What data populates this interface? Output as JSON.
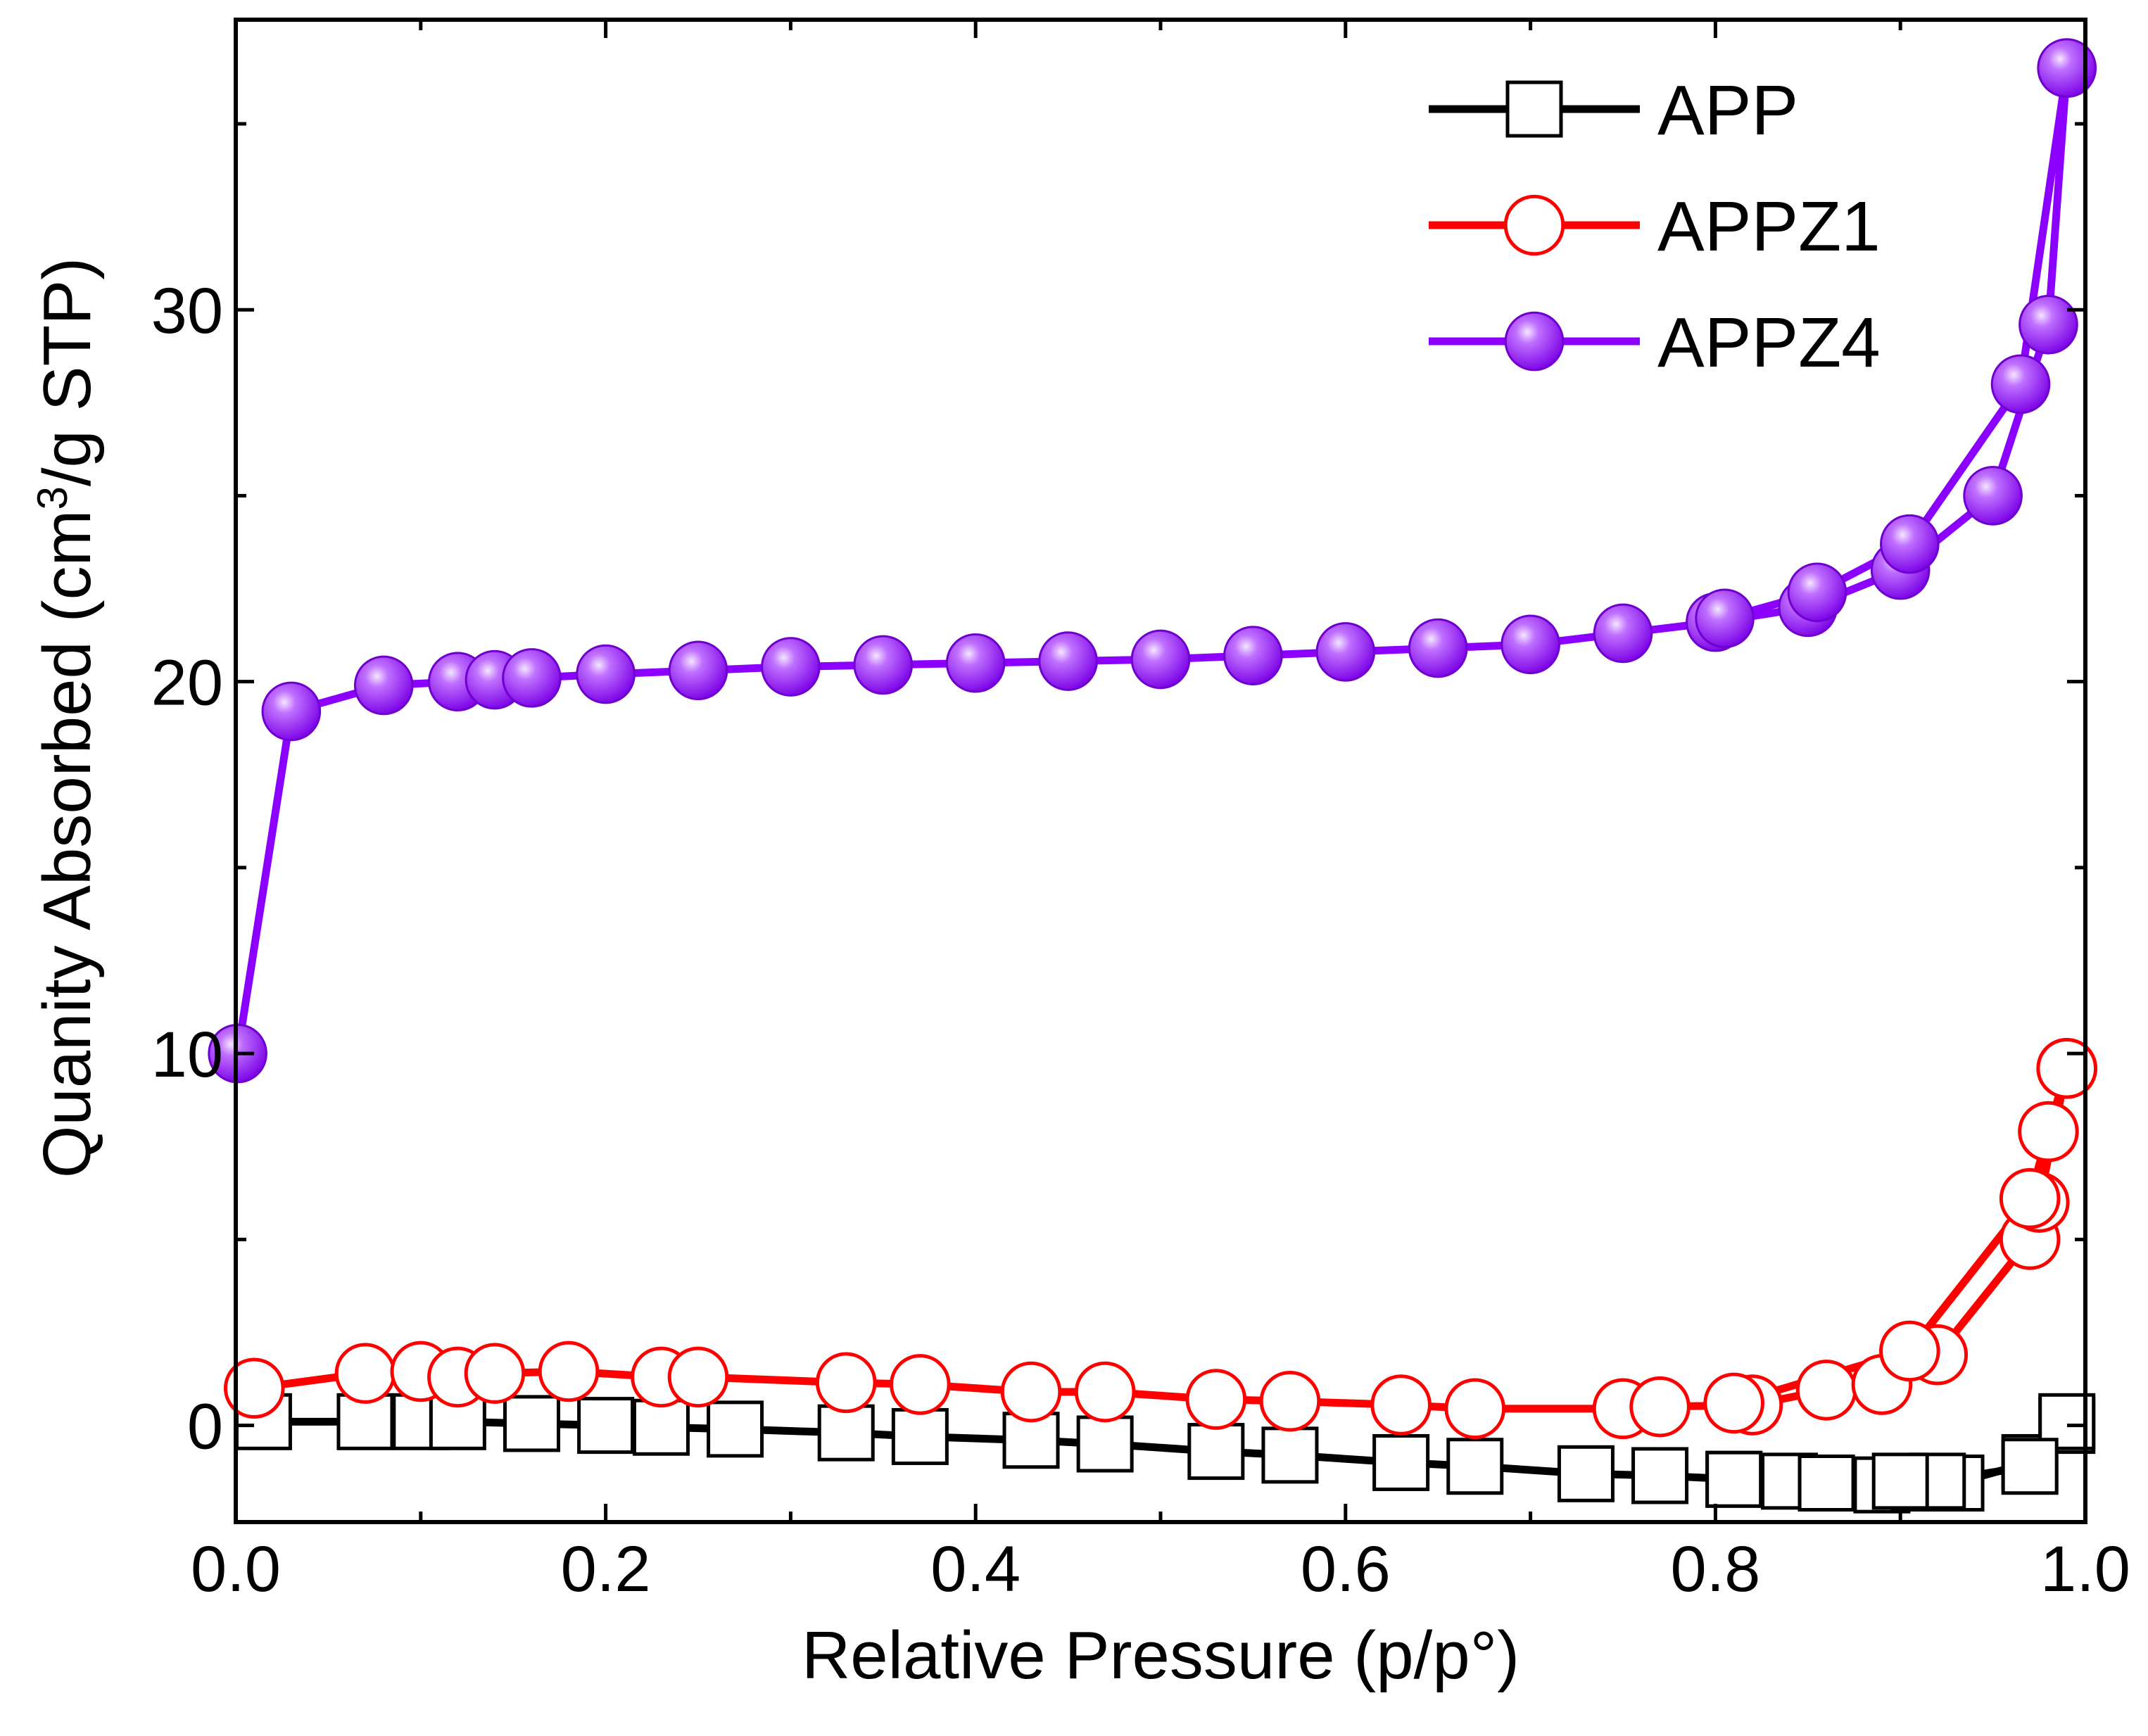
{
  "chart_data": {
    "type": "line",
    "title": "",
    "xlabel": "Relative Pressure (p/p°)",
    "ylabel_prefix": "Quanity Absorbed (cm",
    "ylabel_sup": "3",
    "ylabel_suffix": "/g STP)",
    "xlim": [
      0.0,
      1.0
    ],
    "ylim": [
      -2.6,
      37.8
    ],
    "x_ticks": [
      0.0,
      0.2,
      0.4,
      0.6,
      0.8,
      1.0
    ],
    "x_tick_labels": [
      "0.0",
      "0.2",
      "0.4",
      "0.6",
      "0.8",
      "1.0"
    ],
    "y_ticks": [
      0,
      10,
      20,
      30
    ],
    "y_tick_labels": [
      "0",
      "10",
      "20",
      "30"
    ],
    "y_minor_ticks": [
      -5,
      5,
      15,
      25,
      35
    ],
    "legend_position": "top-right",
    "series": [
      {
        "name": "APP",
        "color": "#000000",
        "marker": "open-square",
        "adsorption": {
          "x": [
            0.015,
            0.07,
            0.1,
            0.12,
            0.16,
            0.2,
            0.23,
            0.27,
            0.33,
            0.37,
            0.43,
            0.47,
            0.53,
            0.57,
            0.63,
            0.67,
            0.73,
            0.77,
            0.81,
            0.84,
            0.86,
            0.89,
            0.91,
            0.93,
            0.97,
            0.99
          ],
          "y": [
            0.1,
            0.1,
            0.1,
            0.1,
            0.05,
            0.0,
            -0.05,
            -0.1,
            -0.2,
            -0.3,
            -0.4,
            -0.5,
            -0.7,
            -0.8,
            -1.0,
            -1.1,
            -1.3,
            -1.35,
            -1.45,
            -1.5,
            -1.55,
            -1.6,
            -1.55,
            -1.55,
            -1.0,
            0.0
          ]
        },
        "desorption": {
          "x": [
            0.99,
            0.97,
            0.92,
            0.9,
            0.86,
            0.81
          ],
          "y": [
            0.1,
            -1.1,
            -1.5,
            -1.5,
            -1.55,
            -1.45
          ]
        }
      },
      {
        "name": "APPZ1",
        "color": "#ff0000",
        "marker": "open-circle",
        "adsorption": {
          "x": [
            0.01,
            0.07,
            0.1,
            0.12,
            0.14,
            0.18,
            0.23,
            0.25,
            0.33,
            0.37,
            0.43,
            0.47,
            0.53,
            0.57,
            0.63,
            0.67,
            0.75,
            0.77,
            0.82,
            0.86,
            0.89,
            0.92,
            0.97,
            0.975,
            0.99
          ],
          "y": [
            1.0,
            1.4,
            1.45,
            1.3,
            1.4,
            1.45,
            1.3,
            1.3,
            1.15,
            1.1,
            0.9,
            0.9,
            0.7,
            0.65,
            0.55,
            0.45,
            0.45,
            0.5,
            0.55,
            0.95,
            1.1,
            1.9,
            5.0,
            6.0,
            9.6
          ]
        },
        "desorption": {
          "x": [
            0.99,
            0.98,
            0.97,
            0.905,
            0.81
          ],
          "y": [
            9.6,
            7.9,
            6.1,
            2.0,
            0.6
          ]
        }
      },
      {
        "name": "APPZ4",
        "color": "#8b00ff",
        "marker": "filled-sphere",
        "adsorption": {
          "x": [
            0.001,
            0.03,
            0.08,
            0.12,
            0.14,
            0.16,
            0.2,
            0.25,
            0.3,
            0.35,
            0.4,
            0.45,
            0.5,
            0.55,
            0.6,
            0.65,
            0.7,
            0.75,
            0.8,
            0.85,
            0.9,
            0.95,
            0.98,
            0.99
          ],
          "y": [
            10.0,
            19.2,
            19.9,
            20.0,
            20.05,
            20.1,
            20.2,
            20.3,
            20.4,
            20.45,
            20.5,
            20.55,
            20.6,
            20.7,
            20.8,
            20.9,
            21.0,
            21.3,
            21.6,
            22.0,
            23.0,
            25.0,
            29.6,
            36.5
          ]
        },
        "desorption": {
          "x": [
            0.99,
            0.965,
            0.905,
            0.855,
            0.805
          ],
          "y": [
            36.5,
            28.0,
            23.7,
            22.4,
            21.7
          ]
        }
      }
    ]
  }
}
